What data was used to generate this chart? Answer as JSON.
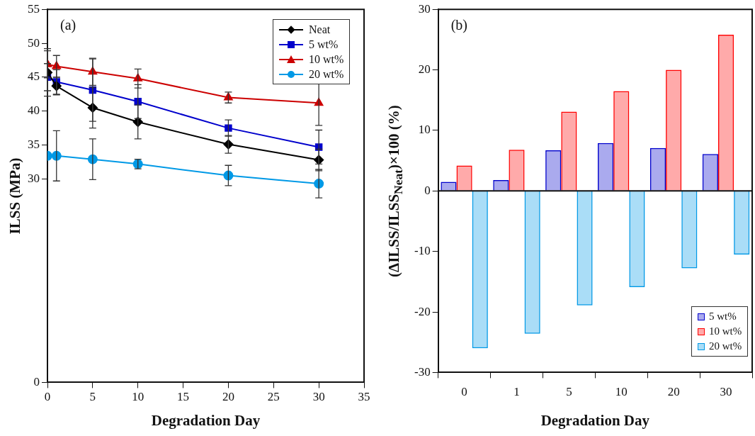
{
  "chart_data": [
    {
      "type": "line",
      "xlabel": "Degradation Day",
      "ylabel": "ILSS (MPa)",
      "annotations": [
        "(a)"
      ],
      "x": [
        0,
        1,
        5,
        10,
        20,
        30
      ],
      "xlim": [
        0,
        35
      ],
      "xticks": [
        0,
        5,
        10,
        15,
        20,
        25,
        30,
        35
      ],
      "ylim": [
        0,
        55
      ],
      "yticks": [
        0,
        30,
        35,
        40,
        45,
        50,
        55
      ],
      "grid": false,
      "legend": "top right",
      "line_style": "solid",
      "series": [
        {
          "name": "Neat",
          "color": "#000000",
          "marker": "diamond",
          "values": [
            45.7,
            43.7,
            40.5,
            38.4,
            35.1,
            32.8
          ],
          "errors": [
            3.5,
            1.3,
            3.0,
            2.5,
            1.3,
            1.6
          ]
        },
        {
          "name": "5 wt%",
          "color": "#0000cc",
          "marker": "square",
          "values": [
            45.0,
            44.3,
            43.1,
            41.4,
            37.5,
            34.7
          ],
          "errors": [
            2.0,
            1.8,
            4.6,
            2.5,
            1.2,
            2.5
          ]
        },
        {
          "name": "10 wt%",
          "color": "#cc0000",
          "marker": "triangle",
          "values": [
            46.9,
            46.6,
            45.8,
            44.8,
            42.0,
            41.2
          ],
          "errors": [
            2.0,
            1.6,
            2.0,
            1.4,
            0.8,
            3.3
          ]
        },
        {
          "name": "20 wt%",
          "color": "#0099e6",
          "marker": "circle",
          "values": [
            33.4,
            33.4,
            32.9,
            32.2,
            30.5,
            29.3
          ],
          "errors": [
            null,
            3.7,
            3.0,
            0.7,
            1.5,
            2.1
          ]
        }
      ]
    },
    {
      "type": "bar",
      "xlabel": "Degradation Day",
      "ylabel": "(ΔILSS/ILSS$_{Neat}$)×100 (%)",
      "annotations": [
        "(b)"
      ],
      "categories": [
        "0",
        "1",
        "5",
        "10",
        "20",
        "30"
      ],
      "ylim": [
        -30,
        30
      ],
      "yticks": [
        -30,
        -20,
        -10,
        0,
        10,
        20,
        30
      ],
      "grid": false,
      "legend": "bottom right",
      "ref_lines": [
        {
          "axis": "y",
          "value": 0,
          "color": "#111111"
        }
      ],
      "series": [
        {
          "name": "5 wt%",
          "color": "#0000cc",
          "values": [
            1.5,
            1.8,
            6.7,
            7.9,
            7.1,
            6.1
          ]
        },
        {
          "name": "10 wt%",
          "color": "#ff0000",
          "values": [
            4.2,
            6.8,
            13.1,
            16.5,
            20.0,
            25.8
          ]
        },
        {
          "name": "20 wt%",
          "color": "#0099e6",
          "values": [
            -26.0,
            -23.6,
            -18.9,
            -15.9,
            -12.8,
            -10.5
          ]
        }
      ]
    }
  ]
}
